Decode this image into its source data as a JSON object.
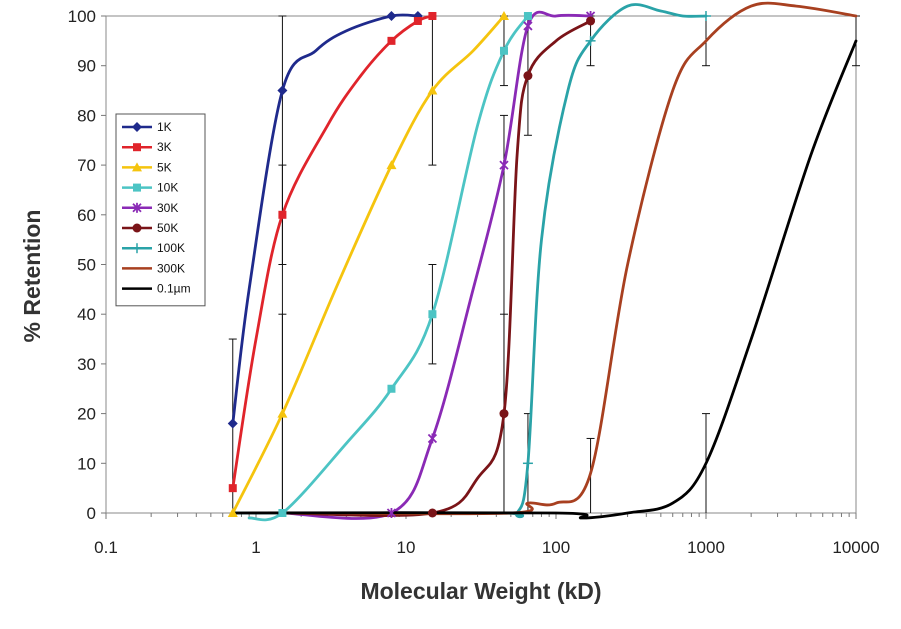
{
  "chart_data": {
    "type": "line",
    "title": "",
    "xlabel": "Molecular Weight (kD)",
    "ylabel": "% Retention",
    "xscale": "log",
    "xlim": [
      0.1,
      10000
    ],
    "ylim": [
      0,
      100
    ],
    "x_ticks": [
      "0.1",
      "1",
      "10",
      "100",
      "1000",
      "10000"
    ],
    "y_ticks": [
      "0",
      "10",
      "20",
      "30",
      "40",
      "50",
      "60",
      "70",
      "80",
      "90",
      "100"
    ],
    "grid": false,
    "legend_position": "left",
    "series": [
      {
        "name": "1K",
        "color": "#1f2a8c",
        "marker": "diamond",
        "points": [
          [
            0.7,
            18
          ],
          [
            1.5,
            85
          ],
          [
            8,
            100
          ],
          [
            12,
            100
          ]
        ],
        "curve": [
          [
            0.7,
            18
          ],
          [
            0.9,
            45
          ],
          [
            1.5,
            85
          ],
          [
            2.5,
            93
          ],
          [
            4,
            97
          ],
          [
            8,
            100
          ],
          [
            12,
            100
          ]
        ]
      },
      {
        "name": "3K",
        "color": "#e0242b",
        "marker": "square",
        "points": [
          [
            0.7,
            5
          ],
          [
            1.5,
            60
          ],
          [
            8,
            95
          ],
          [
            12,
            99
          ],
          [
            15,
            100
          ]
        ],
        "curve": [
          [
            0.7,
            5
          ],
          [
            1.0,
            35
          ],
          [
            1.5,
            60
          ],
          [
            3,
            78
          ],
          [
            5,
            88
          ],
          [
            8,
            95
          ],
          [
            12,
            99
          ],
          [
            15,
            100
          ]
        ]
      },
      {
        "name": "5K",
        "color": "#f5c40e",
        "marker": "triangle",
        "points": [
          [
            0.7,
            0
          ],
          [
            1.5,
            20
          ],
          [
            8,
            70
          ],
          [
            15,
            85
          ],
          [
            45,
            100
          ]
        ],
        "curve": [
          [
            0.7,
            0
          ],
          [
            1.5,
            20
          ],
          [
            3.5,
            46
          ],
          [
            8,
            70
          ],
          [
            15,
            85
          ],
          [
            28,
            93
          ],
          [
            45,
            100
          ]
        ]
      },
      {
        "name": "10K",
        "color": "#4cc4c4",
        "marker": "square",
        "points": [
          [
            1.5,
            0
          ],
          [
            8,
            25
          ],
          [
            15,
            40
          ],
          [
            45,
            93
          ],
          [
            65,
            100
          ]
        ],
        "curve": [
          [
            0.9,
            -1
          ],
          [
            1.5,
            0
          ],
          [
            4,
            14
          ],
          [
            8,
            25
          ],
          [
            15,
            40
          ],
          [
            30,
            78
          ],
          [
            45,
            93
          ],
          [
            65,
            100
          ]
        ]
      },
      {
        "name": "30K",
        "color": "#8a2ab5",
        "marker": "star",
        "points": [
          [
            8,
            0
          ],
          [
            15,
            15
          ],
          [
            45,
            70
          ],
          [
            65,
            98
          ],
          [
            170,
            100
          ]
        ],
        "curve": [
          [
            1.5,
            0
          ],
          [
            8,
            0
          ],
          [
            15,
            15
          ],
          [
            28,
            45
          ],
          [
            45,
            70
          ],
          [
            65,
            98
          ],
          [
            100,
            100
          ],
          [
            170,
            100
          ]
        ]
      },
      {
        "name": "50K",
        "color": "#7a1418",
        "marker": "circle",
        "points": [
          [
            15,
            0
          ],
          [
            45,
            20
          ],
          [
            65,
            88
          ],
          [
            170,
            99
          ]
        ],
        "curve": [
          [
            1.5,
            0
          ],
          [
            15,
            0
          ],
          [
            30,
            7
          ],
          [
            45,
            20
          ],
          [
            55,
            72
          ],
          [
            65,
            88
          ],
          [
            100,
            95
          ],
          [
            170,
            99
          ]
        ]
      },
      {
        "name": "100K",
        "color": "#2aa3a8",
        "marker": "plus",
        "points": [
          [
            65,
            10
          ],
          [
            170,
            95
          ],
          [
            1000,
            100
          ]
        ],
        "curve": [
          [
            0.7,
            0
          ],
          [
            40,
            0
          ],
          [
            55,
            0
          ],
          [
            65,
            10
          ],
          [
            80,
            55
          ],
          [
            120,
            85
          ],
          [
            170,
            95
          ],
          [
            300,
            102
          ],
          [
            500,
            101
          ],
          [
            700,
            100
          ],
          [
            1000,
            100
          ]
        ]
      },
      {
        "name": "300K",
        "color": "#a84020",
        "marker": "none",
        "points": [
          [
            170,
            8
          ],
          [
            1000,
            95
          ],
          [
            10000,
            100
          ]
        ],
        "curve": [
          [
            1.5,
            0
          ],
          [
            50,
            0
          ],
          [
            65,
            2
          ],
          [
            100,
            2
          ],
          [
            170,
            8
          ],
          [
            300,
            50
          ],
          [
            600,
            85
          ],
          [
            1000,
            95
          ],
          [
            2000,
            102
          ],
          [
            4000,
            102
          ],
          [
            10000,
            100
          ]
        ]
      },
      {
        "name": "0.1µm",
        "color": "#000000",
        "marker": "none",
        "points": [
          [
            1000,
            10
          ],
          [
            10000,
            95
          ]
        ],
        "curve": [
          [
            0.7,
            0
          ],
          [
            100,
            0
          ],
          [
            150,
            -1
          ],
          [
            300,
            0
          ],
          [
            600,
            2
          ],
          [
            1000,
            10
          ],
          [
            2000,
            35
          ],
          [
            5000,
            72
          ],
          [
            10000,
            95
          ]
        ]
      }
    ],
    "error_bars": [
      {
        "x": 0.7,
        "low": 0,
        "high": 35
      },
      {
        "x": 1.5,
        "low": 50,
        "high": 100
      },
      {
        "x": 1.5,
        "low": 0,
        "high": 70
      },
      {
        "x": 1.5,
        "low": 0,
        "high": 40
      },
      {
        "x": 15,
        "low": 70,
        "high": 100
      },
      {
        "x": 15,
        "low": 30,
        "high": 50
      },
      {
        "x": 45,
        "low": 86,
        "high": 100
      },
      {
        "x": 45,
        "low": 0,
        "high": 80
      },
      {
        "x": 45,
        "low": 0,
        "high": 40
      },
      {
        "x": 65,
        "low": 76,
        "high": 100
      },
      {
        "x": 65,
        "low": 0,
        "high": 20
      },
      {
        "x": 170,
        "low": 90,
        "high": 100
      },
      {
        "x": 170,
        "low": 0,
        "high": 15
      },
      {
        "x": 1000,
        "low": 90,
        "high": 100
      },
      {
        "x": 1000,
        "low": 0,
        "high": 20
      },
      {
        "x": 10000,
        "low": 90,
        "high": 100
      }
    ]
  }
}
